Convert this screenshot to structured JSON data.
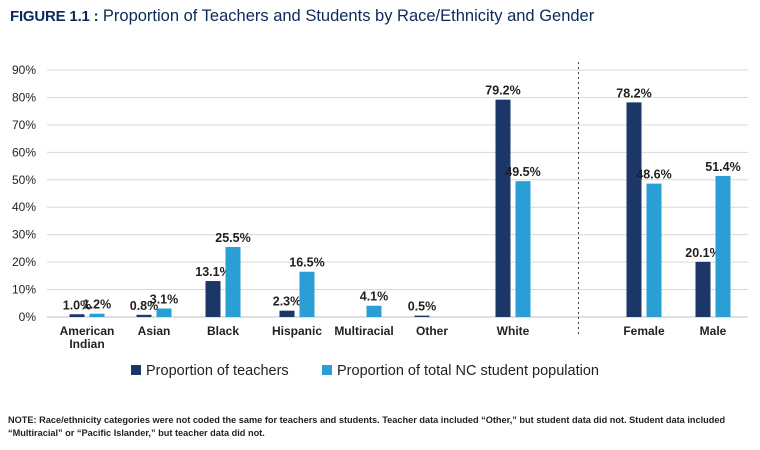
{
  "figure": {
    "label": "FIGURE 1.1 :",
    "title": "Proportion of Teachers and Students by Race/Ethnicity and Gender"
  },
  "note": "NOTE: Race/ethnicity categories were not coded the same for teachers and students. Teacher data included “Other,” but student data did not. Student data included “Multiracial” or “Pacific Islander,” but teacher data did not.",
  "chart_data": {
    "type": "bar",
    "categories": [
      "American Indian",
      "Asian",
      "Black",
      "Hispanic",
      "Multiracial",
      "Other",
      "White",
      "Female",
      "Male"
    ],
    "category_lines": [
      [
        "American",
        "Indian"
      ],
      [
        "Asian"
      ],
      [
        "Black"
      ],
      [
        "Hispanic"
      ],
      [
        "Multiracial"
      ],
      [
        "Other"
      ],
      [
        "White"
      ],
      [
        "Female"
      ],
      [
        "Male"
      ]
    ],
    "series": [
      {
        "name": "Proportion of teachers",
        "color": "#1b3667",
        "values": [
          1.0,
          0.8,
          13.1,
          2.3,
          null,
          0.5,
          79.2,
          78.2,
          20.1
        ],
        "labels": [
          "1.0%",
          "0.8%",
          "13.1%",
          "2.3%",
          "",
          "0.5%",
          "79.2%",
          "78.2%",
          "20.1%"
        ]
      },
      {
        "name": "Proportion of total NC student population",
        "color": "#2a9fd6",
        "values": [
          1.2,
          3.1,
          25.5,
          16.5,
          4.1,
          null,
          49.5,
          48.6,
          51.4
        ],
        "labels": [
          "1.2%",
          "3.1%",
          "25.5%",
          "16.5%",
          "4.1%",
          "",
          "49.5%",
          "48.6%",
          "51.4%"
        ]
      }
    ],
    "ylim": [
      0,
      90
    ],
    "yticks": [
      "0%",
      "10%",
      "20%",
      "30%",
      "40%",
      "50%",
      "60%",
      "70%",
      "80%",
      "90%"
    ],
    "grid": true,
    "divider_after": "White",
    "legend_position": "bottom-center"
  }
}
